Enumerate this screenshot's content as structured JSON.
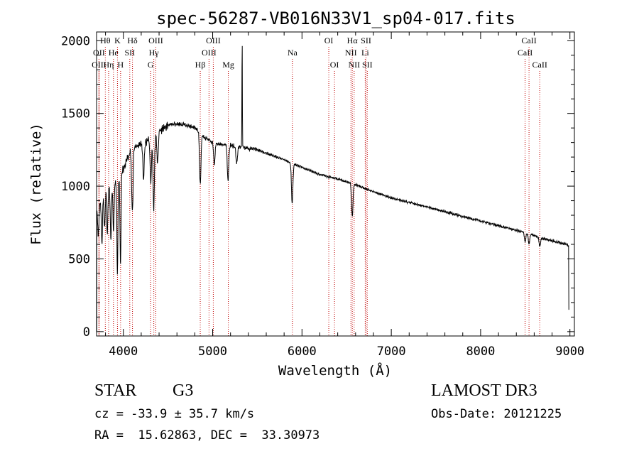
{
  "colors": {
    "background": "#ffffff",
    "axis": "#000000",
    "spectrum": "#000000",
    "line_marker": "#c00000"
  },
  "chart_data": {
    "type": "line",
    "title": "spec-56287-VB016N33V1_sp04-017.fits",
    "xlabel": "Wavelength (Å)",
    "ylabel": "Flux (relative)",
    "xlim": [
      3700,
      9050
    ],
    "ylim": [
      -30,
      2060
    ],
    "x_ticks": [
      4000,
      5000,
      6000,
      7000,
      8000,
      9000
    ],
    "y_ticks": [
      0,
      500,
      1000,
      1500,
      2000
    ],
    "continuum": [
      [
        3700,
        820
      ],
      [
        3800,
        960
      ],
      [
        3900,
        1000
      ],
      [
        4000,
        1120
      ],
      [
        4100,
        1270
      ],
      [
        4200,
        1290
      ],
      [
        4300,
        1320
      ],
      [
        4400,
        1380
      ],
      [
        4500,
        1420
      ],
      [
        4600,
        1430
      ],
      [
        4700,
        1420
      ],
      [
        4800,
        1400
      ],
      [
        4900,
        1340
      ],
      [
        5000,
        1300
      ],
      [
        5200,
        1280
      ],
      [
        5500,
        1250
      ],
      [
        5800,
        1180
      ],
      [
        6000,
        1130
      ],
      [
        6200,
        1080
      ],
      [
        6400,
        1050
      ],
      [
        6600,
        1010
      ],
      [
        6800,
        960
      ],
      [
        7000,
        920
      ],
      [
        7500,
        840
      ],
      [
        8000,
        760
      ],
      [
        8500,
        680
      ],
      [
        8700,
        640
      ],
      [
        8960,
        600
      ],
      [
        8985,
        590
      ]
    ],
    "absorption_features": [
      [
        3720,
        200
      ],
      [
        3760,
        300
      ],
      [
        3790,
        250
      ],
      [
        3820,
        300
      ],
      [
        3860,
        350
      ],
      [
        3890,
        300
      ],
      [
        3933,
        620
      ],
      [
        3968,
        620
      ],
      [
        4101,
        450
      ],
      [
        4226,
        250
      ],
      [
        4307,
        300
      ],
      [
        4340,
        500
      ],
      [
        4383,
        200
      ],
      [
        4861,
        350
      ],
      [
        5018,
        150
      ],
      [
        5172,
        250
      ],
      [
        5269,
        120
      ],
      [
        5890,
        280
      ],
      [
        6563,
        220
      ],
      [
        8498,
        60
      ],
      [
        8542,
        70
      ],
      [
        8662,
        60
      ]
    ],
    "emission_features": [
      [
        5330,
        750
      ]
    ],
    "spectral_lines": [
      {
        "label": "Hθ",
        "wavelength": 3798,
        "row": 0
      },
      {
        "label": "OII",
        "wavelength": 3727,
        "row": 1
      },
      {
        "label": "OIII",
        "wavelength": 3727,
        "row": 2
      },
      {
        "label": "He",
        "wavelength": 3889,
        "row": 1
      },
      {
        "label": "Hη",
        "wavelength": 3835,
        "row": 2
      },
      {
        "label": "K",
        "wavelength": 3934,
        "row": 0
      },
      {
        "label": "H",
        "wavelength": 3969,
        "row": 2
      },
      {
        "label": "SII",
        "wavelength": 4072,
        "row": 1
      },
      {
        "label": "Hδ",
        "wavelength": 4102,
        "row": 0
      },
      {
        "label": "OIII",
        "wavelength": 4363,
        "row": 0
      },
      {
        "label": "Hγ",
        "wavelength": 4341,
        "row": 1
      },
      {
        "label": "G",
        "wavelength": 4305,
        "row": 2
      },
      {
        "label": "Hβ",
        "wavelength": 4861,
        "row": 2
      },
      {
        "label": "OIII",
        "wavelength": 5007,
        "row": 0
      },
      {
        "label": "OIII",
        "wavelength": 4959,
        "row": 1
      },
      {
        "label": "Mg",
        "wavelength": 5175,
        "row": 2
      },
      {
        "label": "Na",
        "wavelength": 5893,
        "row": 1
      },
      {
        "label": "OI",
        "wavelength": 6300,
        "row": 0
      },
      {
        "label": "OI",
        "wavelength": 6364,
        "row": 2
      },
      {
        "label": "Hα",
        "wavelength": 6563,
        "row": 0
      },
      {
        "label": "NII",
        "wavelength": 6548,
        "row": 1
      },
      {
        "label": "NII",
        "wavelength": 6584,
        "row": 2
      },
      {
        "label": "SII",
        "wavelength": 6717,
        "row": 0
      },
      {
        "label": "Li",
        "wavelength": 6708,
        "row": 1
      },
      {
        "label": "SII",
        "wavelength": 6731,
        "row": 2
      },
      {
        "label": "CaII",
        "wavelength": 8542,
        "row": 0
      },
      {
        "label": "CaII",
        "wavelength": 8498,
        "row": 1
      },
      {
        "label": "CaII",
        "wavelength": 8662,
        "row": 2
      }
    ]
  },
  "info": {
    "class": "STAR",
    "subclass": "G3",
    "survey": "LAMOST DR3",
    "cz_line": "cz = -33.9 ± 35.7 km/s",
    "obs_date_line": "Obs-Date: 20121225",
    "coords_line": "RA =  15.62863, DEC =  33.30973"
  }
}
